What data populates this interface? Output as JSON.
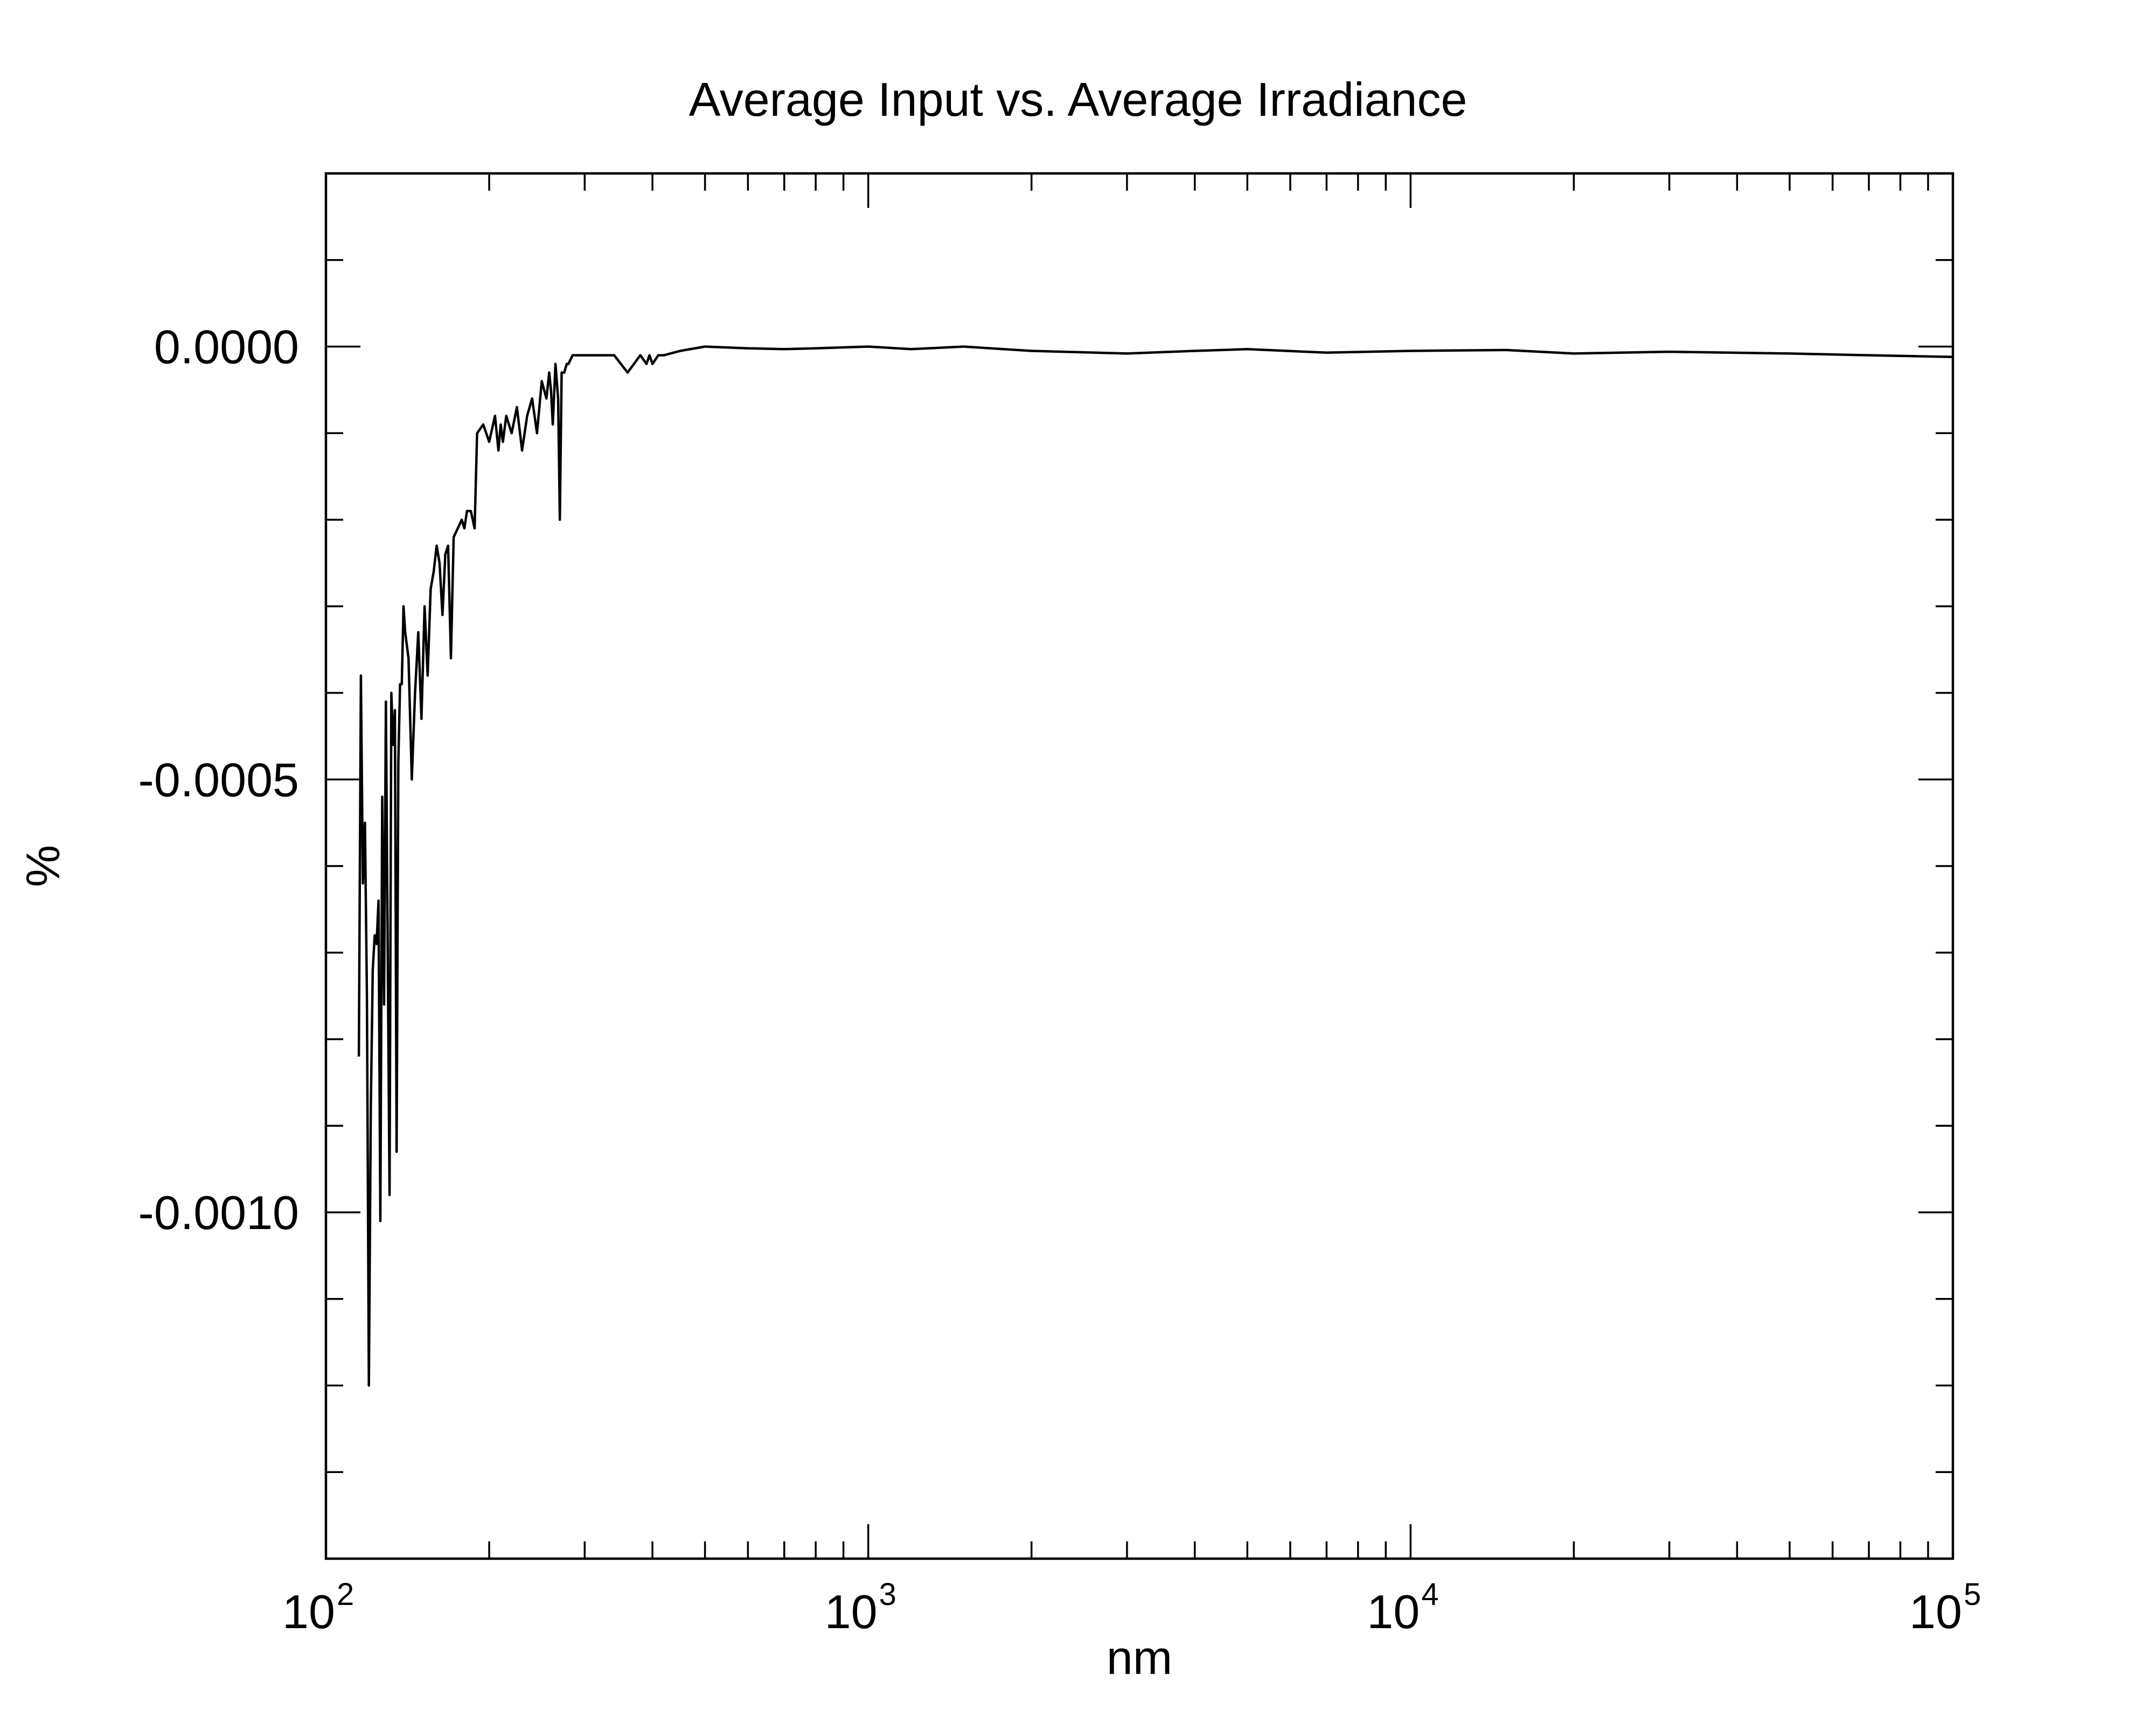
{
  "chart_data": {
    "type": "line",
    "title": "Average Input vs. Average Irradiance",
    "xlabel": "nm",
    "ylabel": "%",
    "x_scale": "log",
    "xlim": [
      100,
      100000
    ],
    "ylim": [
      -0.0014,
      0.0002
    ],
    "grid": false,
    "legend": "none",
    "x_ticks": [
      {
        "base": "10",
        "exp": "2",
        "value": 100
      },
      {
        "base": "10",
        "exp": "3",
        "value": 1000
      },
      {
        "base": "10",
        "exp": "4",
        "value": 10000
      },
      {
        "base": "10",
        "exp": "5",
        "value": 100000
      }
    ],
    "y_ticks": [
      {
        "label": "0.0000",
        "value": 0.0
      },
      {
        "label": "-0.0005",
        "value": -0.0005
      },
      {
        "label": "-0.0010",
        "value": -0.001
      }
    ],
    "y_minor_step": 0.0001,
    "line_color": "#000000",
    "series": [
      {
        "x": [
          115,
          116,
          117,
          118,
          119,
          120,
          121,
          122,
          123,
          124,
          125,
          126,
          127,
          128,
          129,
          130,
          131,
          132,
          133,
          134,
          135,
          136,
          137,
          138,
          139,
          140,
          142,
          144,
          146,
          148,
          150,
          152,
          154,
          156,
          158,
          160,
          162,
          164,
          166,
          168,
          170,
          172,
          175,
          178,
          180,
          182,
          185,
          188,
          190,
          195,
          200,
          205,
          208,
          210,
          212,
          215,
          220,
          225,
          230,
          235,
          240,
          245,
          250,
          255,
          258,
          260,
          262,
          265,
          268,
          270,
          272,
          275,
          278,
          280,
          285,
          290,
          300,
          320,
          340,
          360,
          380,
          390,
          395,
          400,
          410,
          420,
          450,
          500,
          600,
          700,
          800,
          1000,
          1200,
          1500,
          2000,
          3000,
          4000,
          5000,
          7000,
          10000,
          15000,
          20000,
          30000,
          50000,
          70000,
          100000
        ],
        "values": [
          -0.00082,
          -0.00038,
          -0.00062,
          -0.00055,
          -0.00075,
          -0.0012,
          -0.00088,
          -0.00072,
          -0.00068,
          -0.00069,
          -0.00064,
          -0.00101,
          -0.00052,
          -0.00076,
          -0.00041,
          -0.0007,
          -0.00098,
          -0.0004,
          -0.00046,
          -0.00042,
          -0.00093,
          -0.00048,
          -0.00039,
          -0.00039,
          -0.0003,
          -0.00033,
          -0.00036,
          -0.0005,
          -0.0004,
          -0.00033,
          -0.00043,
          -0.0003,
          -0.00038,
          -0.00028,
          -0.00026,
          -0.00023,
          -0.00025,
          -0.00031,
          -0.00024,
          -0.00023,
          -0.00036,
          -0.00022,
          -0.00021,
          -0.0002,
          -0.00021,
          -0.00019,
          -0.00019,
          -0.00021,
          -0.0001,
          -9e-05,
          -0.00011,
          -8e-05,
          -0.00012,
          -9e-05,
          -0.00011,
          -8e-05,
          -0.0001,
          -7e-05,
          -0.00012,
          -8e-05,
          -6e-05,
          -0.0001,
          -4e-05,
          -6e-05,
          -3e-05,
          -5e-05,
          -9e-05,
          -2e-05,
          -6e-05,
          -0.0002,
          -3e-05,
          -3e-05,
          -2e-05,
          -2e-05,
          -1e-05,
          -1e-05,
          -1e-05,
          -1e-05,
          -1e-05,
          -3e-05,
          -1e-05,
          -2e-05,
          -1e-05,
          -2e-05,
          -1e-05,
          -1e-05,
          -5e-06,
          0.0,
          -2e-06,
          -3e-06,
          -2e-06,
          0.0,
          -3e-06,
          0.0,
          -5e-06,
          -8e-06,
          -5e-06,
          -3e-06,
          -7e-06,
          -5e-06,
          -4e-06,
          -8e-06,
          -6e-06,
          -8e-06,
          -1e-05,
          -1.2e-05
        ]
      }
    ]
  }
}
